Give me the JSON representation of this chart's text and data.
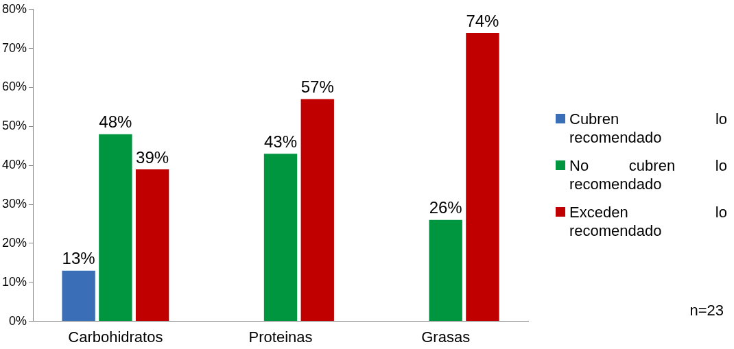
{
  "chart_data": {
    "type": "bar",
    "categories": [
      "Carbohidratos",
      "Proteinas",
      "Grasas"
    ],
    "series": [
      {
        "name": "Cubren lo recomendado",
        "color": "#3a6fb8",
        "values": [
          13,
          null,
          null
        ],
        "value_labels": [
          "13%",
          null,
          null
        ]
      },
      {
        "name": "No cubren lo recomendado",
        "color": "#00963f",
        "values": [
          48,
          43,
          26
        ],
        "value_labels": [
          "48%",
          "43%",
          "26%"
        ]
      },
      {
        "name": "Exceden lo recomendado",
        "color": "#c00000",
        "values": [
          39,
          57,
          74
        ],
        "value_labels": [
          "39%",
          "57%",
          "74%"
        ]
      }
    ],
    "ylim": [
      0,
      80
    ],
    "yticks": [
      {
        "value": 0,
        "label": "0%"
      },
      {
        "value": 10,
        "label": "10%"
      },
      {
        "value": 20,
        "label": "20%"
      },
      {
        "value": 30,
        "label": "30%"
      },
      {
        "value": 40,
        "label": "40%"
      },
      {
        "value": 50,
        "label": "50%"
      },
      {
        "value": 60,
        "label": "60%"
      },
      {
        "value": 70,
        "label": "70%"
      },
      {
        "value": 80,
        "label": "80%"
      }
    ],
    "grid": false,
    "legend": "right",
    "annotations": [
      "n=23"
    ]
  }
}
